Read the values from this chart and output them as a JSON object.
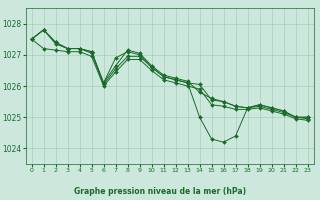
{
  "bg_color": "#cce8dc",
  "grid_color": "#aaccbb",
  "line_color": "#1a6b2a",
  "marker_color": "#1a6b2a",
  "xlabel": "Graphe pression niveau de la mer (hPa)",
  "xlabel_color": "#1a6b2a",
  "ylim": [
    1023.5,
    1028.5
  ],
  "xlim": [
    -0.5,
    23.5
  ],
  "yticks": [
    1024,
    1025,
    1026,
    1027,
    1028
  ],
  "xticks": [
    0,
    1,
    2,
    3,
    4,
    5,
    6,
    7,
    8,
    9,
    10,
    11,
    12,
    13,
    14,
    15,
    16,
    17,
    18,
    19,
    20,
    21,
    22,
    23
  ],
  "series": [
    [
      1027.5,
      1027.8,
      1027.4,
      1027.2,
      1027.2,
      1027.1,
      1026.1,
      1026.9,
      1027.1,
      1027.0,
      1026.6,
      1026.3,
      1026.2,
      1026.1,
      1025.0,
      1024.3,
      1024.2,
      1024.4,
      1025.3,
      1025.4,
      1025.3,
      1025.2,
      1025.0,
      1025.0
    ],
    [
      1027.5,
      1027.8,
      1027.4,
      1027.2,
      1027.2,
      1027.1,
      1026.1,
      1026.65,
      1027.15,
      1027.05,
      1026.65,
      1026.35,
      1026.25,
      1026.15,
      1025.8,
      1025.6,
      1025.5,
      1025.35,
      1025.3,
      1025.4,
      1025.3,
      1025.2,
      1025.0,
      1025.0
    ],
    [
      1027.5,
      1027.8,
      1027.35,
      1027.2,
      1027.2,
      1027.05,
      1026.05,
      1026.55,
      1026.95,
      1026.95,
      1026.6,
      1026.3,
      1026.2,
      1026.1,
      1026.05,
      1025.55,
      1025.5,
      1025.35,
      1025.3,
      1025.35,
      1025.25,
      1025.15,
      1025.0,
      1024.95
    ],
    [
      1027.5,
      1027.2,
      1027.15,
      1027.1,
      1027.1,
      1026.95,
      1026.0,
      1026.45,
      1026.85,
      1026.85,
      1026.5,
      1026.2,
      1026.1,
      1026.0,
      1025.9,
      1025.4,
      1025.35,
      1025.25,
      1025.25,
      1025.3,
      1025.2,
      1025.1,
      1024.95,
      1024.9
    ]
  ]
}
